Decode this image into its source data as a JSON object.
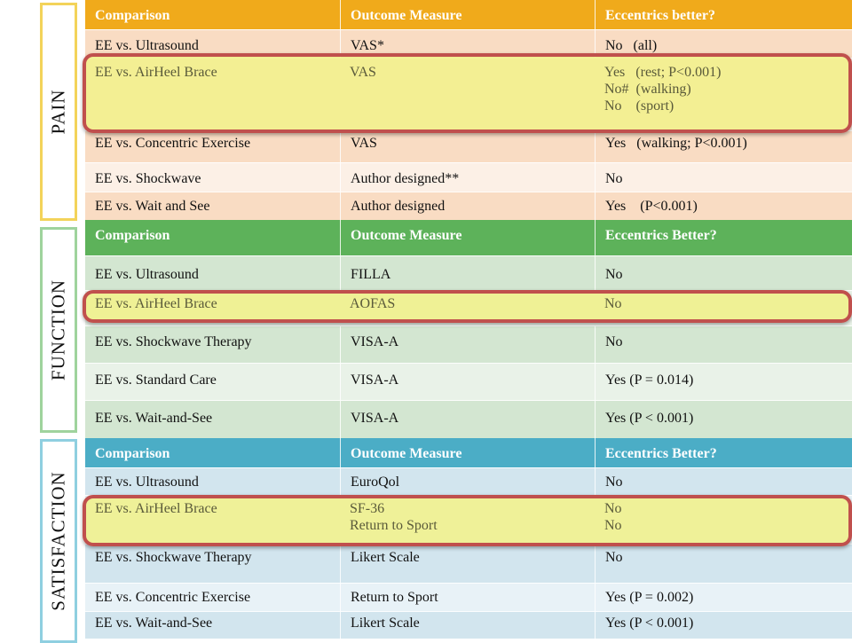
{
  "sections": {
    "pain": {
      "label": "PAIN",
      "header_color": "#f0aa1b",
      "header": [
        "Comparison",
        "Outcome Measure",
        "Eccentrics better?"
      ],
      "rows": [
        [
          "EE vs. Ultrasound",
          "VAS*",
          "No   (all)"
        ],
        [
          "EE vs. AirHeel Brace",
          "VAS",
          "Yes   (rest; P<0.001)\nNo#  (walking)\nNo    (sport)"
        ],
        [
          "EE vs. Concentric Exercise",
          "VAS",
          "Yes   (walking; P<0.001)"
        ],
        [
          "EE vs. Shockwave",
          "Author designed**",
          "No"
        ],
        [
          "EE vs. Wait and See",
          "Author designed",
          "Yes    (P<0.001)"
        ]
      ]
    },
    "function": {
      "label": "FUNCTION",
      "header_color": "#5db25a",
      "header": [
        "Comparison",
        "Outcome Measure",
        "Eccentrics Better?"
      ],
      "rows": [
        [
          "EE vs. Ultrasound",
          "FILLA",
          "No"
        ],
        [
          "EE vs. AirHeel Brace",
          "AOFAS",
          "No"
        ],
        [
          "EE vs. Shockwave Therapy",
          "VISA-A",
          "No"
        ],
        [
          "EE vs. Standard Care",
          "VISA-A",
          "Yes (P = 0.014)"
        ],
        [
          "EE vs. Wait-and-See",
          "VISA-A",
          "Yes (P < 0.001)"
        ]
      ]
    },
    "satisfaction": {
      "label": "SATISFACTION",
      "header_color": "#4badc6",
      "header": [
        "Comparison",
        "Outcome Measure",
        "Eccentrics Better?"
      ],
      "rows": [
        [
          "EE vs. Ultrasound",
          "EuroQol",
          "No"
        ],
        [
          "EE vs. AirHeel Brace",
          "SF-36\nReturn to Sport",
          "No\nNo"
        ],
        [
          "EE vs. Shockwave Therapy",
          "Likert Scale",
          "No"
        ],
        [
          "EE vs. Concentric Exercise",
          "Return to Sport",
          "Yes (P = 0.002)"
        ],
        [
          "EE vs. Wait-and-See",
          "Likert Scale",
          "Yes (P < 0.001)"
        ]
      ]
    }
  },
  "colors": {
    "pain_side_border": "#f3d35a",
    "function_side_border": "#9fd39d",
    "satisfaction_side_border": "#8fcfe0",
    "highlight_border": "#c0504d",
    "highlight_fill": "#f0f08a"
  }
}
